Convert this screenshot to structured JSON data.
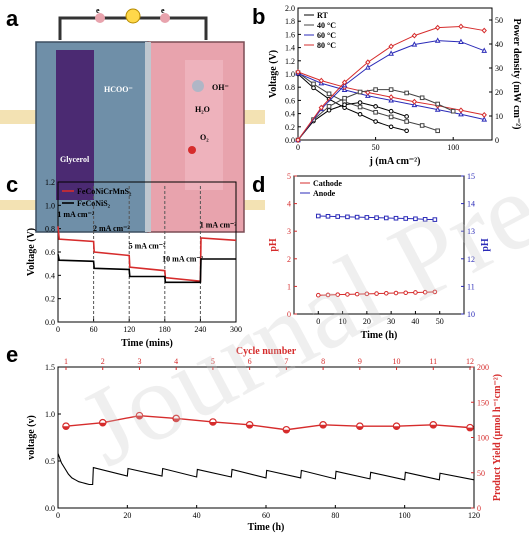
{
  "panels": {
    "a": "a",
    "b": "b",
    "c": "c",
    "d": "d",
    "e": "e"
  },
  "watermark": "Journal Pre-proof",
  "schematic": {
    "labels": {
      "hcoo": "HCOO⁻",
      "glycerol": "Glycerol",
      "e1": "e",
      "e2": "e",
      "h2o": "H₂O",
      "o2": "O₂",
      "oh": "OH⁻"
    },
    "colors": {
      "anode_cell": "#6f8fa8",
      "cathode_cell": "#e8a3ad",
      "electrode": "#4b2a72",
      "wire": "#333333"
    }
  },
  "chart_data": [
    {
      "id": "b",
      "type": "line",
      "xlabel": "j (mA cm⁻²)",
      "ylabel": "Voltage (V)",
      "y2label": "Power density (mW cm⁻²)",
      "xlim": [
        0,
        125
      ],
      "ylim": [
        0,
        2.0
      ],
      "y2lim": [
        0,
        55
      ],
      "xticks": [
        0,
        50,
        100
      ],
      "yticks": [
        0.0,
        0.2,
        0.4,
        0.6,
        0.8,
        1.0,
        1.2,
        1.4,
        1.6,
        1.8,
        2.0
      ],
      "y2ticks": [
        0,
        10,
        20,
        30,
        40,
        50
      ],
      "legend": [
        "RT",
        "40 °C",
        "60 °C",
        "80 °C"
      ],
      "legend_position": "top-left",
      "series": [
        {
          "name": "RT",
          "color": "#000000",
          "axis": "left",
          "x": [
            0,
            10,
            20,
            30,
            40,
            50,
            60,
            70
          ],
          "values": [
            1.0,
            0.79,
            0.62,
            0.49,
            0.39,
            0.28,
            0.2,
            0.14
          ]
        },
        {
          "name": "40 °C",
          "color": "#444444",
          "axis": "left",
          "x": [
            0,
            10,
            20,
            30,
            40,
            50,
            60,
            70,
            80,
            90
          ],
          "values": [
            1.02,
            0.85,
            0.7,
            0.58,
            0.5,
            0.42,
            0.35,
            0.28,
            0.22,
            0.14
          ]
        },
        {
          "name": "60 °C",
          "color": "#2b2bb8",
          "axis": "left",
          "x": [
            0,
            15,
            30,
            45,
            60,
            75,
            90,
            105,
            120
          ],
          "values": [
            1.01,
            0.86,
            0.76,
            0.67,
            0.6,
            0.53,
            0.46,
            0.39,
            0.31
          ]
        },
        {
          "name": "80 °C",
          "color": "#d62c2c",
          "axis": "left",
          "x": [
            0,
            15,
            30,
            45,
            60,
            75,
            90,
            105,
            120
          ],
          "values": [
            1.03,
            0.9,
            0.8,
            0.72,
            0.65,
            0.58,
            0.52,
            0.45,
            0.38
          ]
        },
        {
          "name": "RT",
          "color": "#000000",
          "axis": "right",
          "x": [
            0,
            10,
            20,
            30,
            40,
            50,
            60,
            70
          ],
          "values": [
            0,
            7.9,
            12.4,
            14.7,
            15.6,
            14,
            12,
            9.8
          ]
        },
        {
          "name": "40 °C",
          "color": "#444444",
          "axis": "right",
          "x": [
            0,
            10,
            20,
            30,
            40,
            50,
            60,
            70,
            80,
            90,
            100
          ],
          "values": [
            0,
            8.5,
            14,
            17.4,
            20,
            21,
            21,
            19.6,
            17.6,
            15,
            12
          ]
        },
        {
          "name": "60 °C",
          "color": "#2b2bb8",
          "axis": "right",
          "x": [
            0,
            15,
            30,
            45,
            60,
            75,
            90,
            105,
            120
          ],
          "values": [
            0,
            12.9,
            22.8,
            30.2,
            36,
            39.8,
            41.4,
            40.9,
            37.2
          ]
        },
        {
          "name": "80 °C",
          "color": "#d62c2c",
          "axis": "right",
          "x": [
            0,
            15,
            30,
            45,
            60,
            75,
            90,
            105,
            120
          ],
          "values": [
            0,
            13.5,
            24,
            32.4,
            39,
            43.5,
            46.8,
            47.3,
            45.6
          ]
        }
      ]
    },
    {
      "id": "c",
      "type": "line",
      "xlabel": "Time (mins)",
      "ylabel": "Voltage (V)",
      "xlim": [
        0,
        300
      ],
      "ylim": [
        0,
        1.2
      ],
      "xticks": [
        0,
        60,
        120,
        180,
        240,
        300
      ],
      "yticks": [
        0.0,
        0.2,
        0.4,
        0.6,
        0.8,
        1.0,
        1.2
      ],
      "legend": [
        "FeCoNiCrMnS₂",
        "FeCoNiS₂"
      ],
      "legend_position": "top-left",
      "annotations": [
        "1 mA cm⁻²",
        "2 mA cm⁻²",
        "5 mA cm⁻²",
        "10 mA cm⁻²",
        "1 mA cm⁻²"
      ],
      "series": [
        {
          "name": "FeCoNiCrMnS₂",
          "color": "#d62c2c",
          "x": [
            0,
            2,
            60,
            61,
            120,
            121,
            180,
            181,
            240,
            241,
            300
          ],
          "values": [
            0.82,
            0.71,
            0.69,
            0.6,
            0.57,
            0.47,
            0.44,
            0.38,
            0.35,
            0.72,
            0.7
          ]
        },
        {
          "name": "FeCoNiS₂",
          "color": "#000000",
          "x": [
            0,
            2,
            60,
            61,
            120,
            121,
            180,
            181,
            240,
            241,
            300
          ],
          "values": [
            0.58,
            0.53,
            0.52,
            0.46,
            0.45,
            0.39,
            0.39,
            0.34,
            0.34,
            0.54,
            0.54
          ]
        }
      ]
    },
    {
      "id": "d",
      "type": "line",
      "xlabel": "Time (h)",
      "ylabel": "pH",
      "y2label": "pH",
      "xlim": [
        -10,
        60
      ],
      "ylim": [
        0,
        5
      ],
      "y2lim": [
        10,
        15
      ],
      "xticks": [
        0,
        10,
        20,
        30,
        40,
        50
      ],
      "yticks": [
        0,
        1,
        2,
        3,
        4,
        5
      ],
      "y2ticks": [
        10,
        11,
        12,
        13,
        14,
        15
      ],
      "legend": [
        "Cathode",
        "Anode"
      ],
      "legend_position": "top-left",
      "series": [
        {
          "name": "Cathode",
          "color": "#d62c2c",
          "axis": "left",
          "x": [
            0,
            4,
            8,
            12,
            16,
            20,
            24,
            28,
            32,
            36,
            40,
            44,
            48
          ],
          "values": [
            0.68,
            0.69,
            0.7,
            0.71,
            0.72,
            0.73,
            0.74,
            0.75,
            0.76,
            0.77,
            0.78,
            0.79,
            0.8
          ]
        },
        {
          "name": "Anode",
          "color": "#2b2bb8",
          "axis": "right",
          "x": [
            0,
            4,
            8,
            12,
            16,
            20,
            24,
            28,
            32,
            36,
            40,
            44,
            48
          ],
          "values": [
            13.55,
            13.54,
            13.53,
            13.52,
            13.51,
            13.5,
            13.49,
            13.48,
            13.47,
            13.46,
            13.45,
            13.43,
            13.42
          ]
        }
      ]
    },
    {
      "id": "e",
      "type": "line",
      "xlabel": "Time (h)",
      "ylabel": "voltage (v)",
      "x2label": "Cycle number",
      "y2label": "Product Yield (μmol h⁻¹cm⁻²)",
      "xlim": [
        0,
        120
      ],
      "ylim": [
        0,
        1.5
      ],
      "x2lim": [
        1,
        12
      ],
      "y2lim": [
        0,
        200
      ],
      "xticks": [
        0,
        20,
        40,
        60,
        80,
        100,
        120
      ],
      "yticks": [
        0.0,
        0.5,
        1.0,
        1.5
      ],
      "x2ticks": [
        1,
        2,
        3,
        4,
        5,
        6,
        7,
        8,
        9,
        10,
        11,
        12
      ],
      "y2ticks": [
        0,
        50,
        100,
        150,
        200
      ],
      "series": [
        {
          "name": "voltage",
          "color": "#000000",
          "axis": "left",
          "x": [
            0,
            1,
            2,
            3,
            4,
            5,
            6,
            7,
            8,
            9,
            10,
            10.2,
            20,
            20.2,
            30,
            30.2,
            40,
            40.2,
            50,
            50.2,
            60,
            60.2,
            70,
            70.2,
            80,
            80.2,
            90,
            90.2,
            100,
            100.2,
            110,
            110.2,
            120
          ],
          "values": [
            0.58,
            0.48,
            0.42,
            0.36,
            0.32,
            0.3,
            0.28,
            0.27,
            0.26,
            0.25,
            0.25,
            0.43,
            0.34,
            0.42,
            0.34,
            0.42,
            0.33,
            0.41,
            0.33,
            0.41,
            0.32,
            0.4,
            0.32,
            0.4,
            0.31,
            0.39,
            0.31,
            0.38,
            0.3,
            0.38,
            0.3,
            0.37,
            0.3
          ]
        },
        {
          "name": "yield",
          "color": "#d62c2c",
          "axis": "top-right",
          "x": [
            1,
            2,
            3,
            4,
            5,
            6,
            7,
            8,
            9,
            10,
            11,
            12
          ],
          "values": [
            116,
            121,
            131,
            127,
            122,
            118,
            111,
            118,
            116,
            116,
            118,
            114
          ]
        }
      ]
    }
  ]
}
